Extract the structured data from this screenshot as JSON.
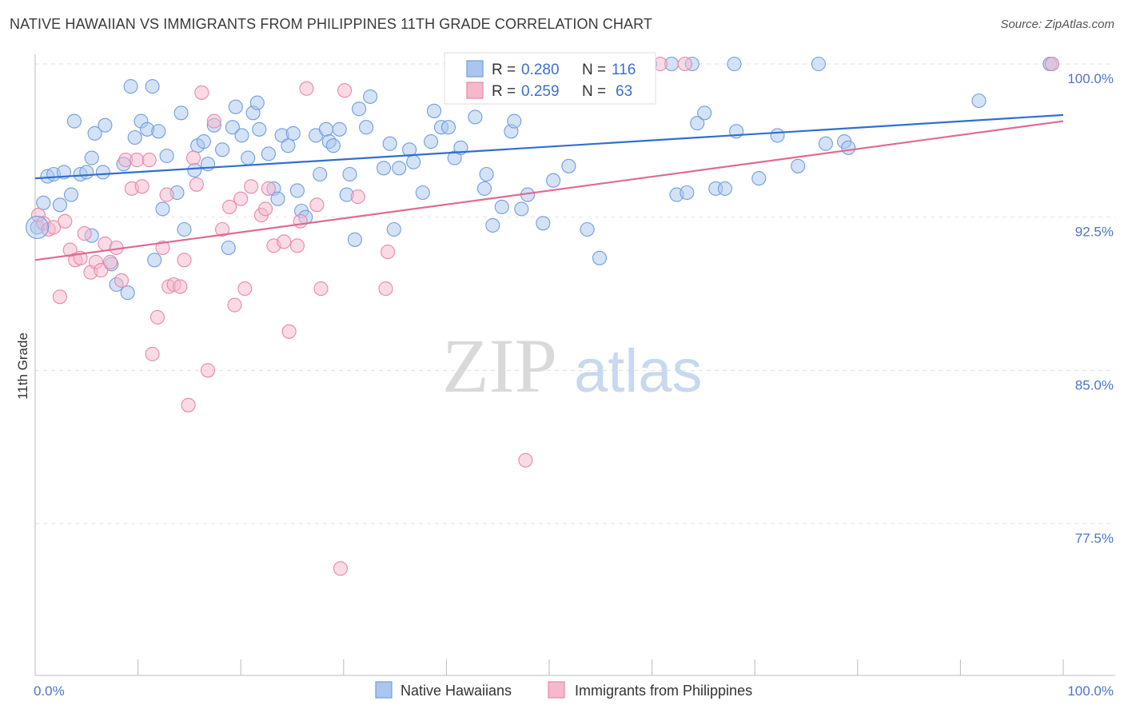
{
  "title": "NATIVE HAWAIIAN VS IMMIGRANTS FROM PHILIPPINES 11TH GRADE CORRELATION CHART",
  "source": "Source: ZipAtlas.com",
  "watermark": {
    "zip": "ZIP",
    "atlas": "atlas"
  },
  "legend": {
    "r_label": "R =",
    "n_label": "N =",
    "entries": [
      {
        "r": "0.280",
        "n": "116",
        "fill": "#aac6ee",
        "stroke": "#6f9ee0"
      },
      {
        "r": "0.259",
        "n": "63",
        "fill": "#f6b8cb",
        "stroke": "#e888a8"
      }
    ]
  },
  "bottom_legend": [
    "Native Hawaiians",
    "Immigrants from Philippines"
  ],
  "chart_data": {
    "type": "scatter",
    "xlabel": "",
    "ylabel": "11th Grade",
    "xlim": [
      0,
      100
    ],
    "ylim": [
      70,
      100.8
    ],
    "x_tick_labels": [
      "0.0%",
      "100.0%"
    ],
    "y_ticks": [
      77.5,
      85.0,
      92.5,
      100.0
    ],
    "y_tick_labels": [
      "77.5%",
      "85.0%",
      "92.5%",
      "100.0%"
    ],
    "grid": true,
    "series": [
      {
        "name": "Native Hawaiians",
        "color": "#6f9ee0",
        "fill": "#aac6ee",
        "trend": {
          "x": [
            0,
            100
          ],
          "y": [
            94.4,
            97.5
          ],
          "color": "#2f6fd0"
        },
        "points": [
          [
            0.2,
            92.0
          ],
          [
            0.8,
            93.2
          ],
          [
            1.2,
            94.5
          ],
          [
            1.8,
            94.6
          ],
          [
            2.4,
            93.1
          ],
          [
            2.8,
            94.7
          ],
          [
            3.5,
            93.6
          ],
          [
            3.8,
            97.2
          ],
          [
            4.4,
            94.6
          ],
          [
            5.0,
            94.7
          ],
          [
            5.5,
            95.4
          ],
          [
            5.5,
            91.6
          ],
          [
            5.8,
            96.6
          ],
          [
            6.6,
            94.7
          ],
          [
            6.8,
            97.0
          ],
          [
            7.4,
            90.2
          ],
          [
            7.9,
            89.2
          ],
          [
            8.6,
            95.1
          ],
          [
            9.0,
            88.8
          ],
          [
            9.3,
            98.9
          ],
          [
            9.7,
            96.4
          ],
          [
            10.3,
            97.2
          ],
          [
            10.9,
            96.8
          ],
          [
            11.4,
            98.9
          ],
          [
            11.6,
            90.4
          ],
          [
            12.0,
            96.7
          ],
          [
            12.4,
            92.9
          ],
          [
            12.8,
            95.5
          ],
          [
            13.8,
            93.7
          ],
          [
            14.2,
            97.6
          ],
          [
            14.5,
            91.9
          ],
          [
            15.5,
            94.8
          ],
          [
            15.8,
            96.0
          ],
          [
            16.4,
            96.2
          ],
          [
            16.8,
            95.1
          ],
          [
            17.4,
            97.0
          ],
          [
            18.2,
            95.8
          ],
          [
            18.8,
            91.0
          ],
          [
            19.2,
            96.9
          ],
          [
            19.5,
            97.9
          ],
          [
            20.1,
            96.5
          ],
          [
            20.7,
            95.4
          ],
          [
            21.2,
            97.6
          ],
          [
            21.6,
            98.1
          ],
          [
            21.8,
            96.8
          ],
          [
            22.7,
            95.6
          ],
          [
            23.2,
            93.9
          ],
          [
            23.6,
            93.4
          ],
          [
            24.0,
            96.5
          ],
          [
            24.6,
            96.0
          ],
          [
            25.1,
            96.6
          ],
          [
            25.5,
            93.8
          ],
          [
            25.9,
            92.8
          ],
          [
            26.3,
            92.5
          ],
          [
            27.3,
            96.5
          ],
          [
            27.7,
            94.6
          ],
          [
            28.3,
            96.8
          ],
          [
            28.6,
            96.2
          ],
          [
            29.0,
            96.0
          ],
          [
            29.6,
            96.8
          ],
          [
            30.3,
            93.6
          ],
          [
            30.6,
            94.6
          ],
          [
            31.1,
            91.4
          ],
          [
            31.5,
            97.8
          ],
          [
            32.2,
            96.9
          ],
          [
            32.6,
            98.4
          ],
          [
            33.9,
            94.9
          ],
          [
            34.5,
            96.1
          ],
          [
            34.9,
            91.9
          ],
          [
            35.4,
            94.9
          ],
          [
            36.4,
            95.8
          ],
          [
            36.8,
            95.2
          ],
          [
            37.7,
            93.7
          ],
          [
            38.5,
            96.2
          ],
          [
            38.8,
            97.7
          ],
          [
            39.5,
            96.9
          ],
          [
            40.2,
            96.9
          ],
          [
            40.8,
            95.4
          ],
          [
            41.4,
            95.9
          ],
          [
            42.5,
            100.0
          ],
          [
            42.8,
            97.4
          ],
          [
            43.7,
            93.9
          ],
          [
            43.9,
            94.6
          ],
          [
            44.5,
            92.1
          ],
          [
            45.1,
            100.0
          ],
          [
            45.4,
            93.0
          ],
          [
            46.3,
            96.7
          ],
          [
            46.6,
            97.2
          ],
          [
            47.3,
            92.9
          ],
          [
            47.9,
            93.6
          ],
          [
            49.4,
            92.2
          ],
          [
            50.4,
            94.3
          ],
          [
            51.9,
            95.0
          ],
          [
            53.7,
            91.9
          ],
          [
            54.9,
            90.5
          ],
          [
            59.8,
            100.0
          ],
          [
            61.9,
            100.0
          ],
          [
            62.4,
            93.6
          ],
          [
            63.4,
            93.7
          ],
          [
            63.9,
            100.0
          ],
          [
            64.4,
            97.1
          ],
          [
            65.1,
            97.6
          ],
          [
            66.2,
            93.9
          ],
          [
            67.1,
            93.9
          ],
          [
            68.0,
            100.0
          ],
          [
            68.2,
            96.7
          ],
          [
            70.4,
            94.4
          ],
          [
            72.2,
            96.5
          ],
          [
            74.2,
            95.0
          ],
          [
            76.2,
            100.0
          ],
          [
            76.9,
            96.1
          ],
          [
            78.7,
            96.2
          ],
          [
            79.1,
            95.9
          ],
          [
            91.8,
            98.2
          ],
          [
            98.7,
            100.0
          ],
          [
            98.9,
            100.0
          ]
        ]
      },
      {
        "name": "Immigrants from Philippines",
        "color": "#e888a8",
        "fill": "#f6b8cb",
        "trend": {
          "x": [
            0,
            100
          ],
          "y": [
            90.4,
            97.2
          ],
          "color": "#e06a93"
        },
        "points": [
          [
            0.3,
            92.6
          ],
          [
            0.8,
            92.2
          ],
          [
            1.3,
            91.9
          ],
          [
            1.8,
            92.0
          ],
          [
            2.4,
            88.6
          ],
          [
            2.9,
            92.3
          ],
          [
            3.4,
            90.9
          ],
          [
            3.9,
            90.4
          ],
          [
            4.4,
            90.5
          ],
          [
            4.8,
            91.7
          ],
          [
            5.4,
            89.8
          ],
          [
            5.9,
            90.3
          ],
          [
            6.4,
            89.9
          ],
          [
            6.8,
            91.2
          ],
          [
            7.3,
            90.3
          ],
          [
            7.9,
            91.0
          ],
          [
            8.4,
            89.4
          ],
          [
            8.8,
            95.3
          ],
          [
            9.4,
            93.9
          ],
          [
            9.9,
            95.3
          ],
          [
            10.4,
            94.0
          ],
          [
            11.1,
            95.3
          ],
          [
            11.4,
            85.8
          ],
          [
            11.9,
            87.6
          ],
          [
            12.4,
            91.0
          ],
          [
            12.8,
            93.6
          ],
          [
            13.0,
            89.1
          ],
          [
            13.5,
            89.2
          ],
          [
            14.1,
            89.1
          ],
          [
            14.5,
            90.4
          ],
          [
            14.9,
            83.3
          ],
          [
            15.4,
            95.4
          ],
          [
            15.7,
            94.1
          ],
          [
            16.2,
            98.6
          ],
          [
            16.8,
            85.0
          ],
          [
            17.4,
            97.2
          ],
          [
            18.2,
            91.9
          ],
          [
            18.9,
            93.0
          ],
          [
            19.4,
            88.2
          ],
          [
            20.0,
            93.4
          ],
          [
            20.4,
            89.0
          ],
          [
            21.0,
            94.0
          ],
          [
            22.0,
            92.6
          ],
          [
            22.4,
            92.9
          ],
          [
            22.7,
            93.9
          ],
          [
            23.2,
            91.1
          ],
          [
            24.2,
            91.3
          ],
          [
            24.7,
            86.9
          ],
          [
            25.5,
            91.1
          ],
          [
            25.8,
            92.3
          ],
          [
            26.4,
            98.8
          ],
          [
            27.4,
            93.1
          ],
          [
            27.8,
            89.0
          ],
          [
            29.7,
            75.3
          ],
          [
            30.1,
            98.7
          ],
          [
            31.4,
            93.5
          ],
          [
            34.1,
            89.0
          ],
          [
            34.3,
            90.8
          ],
          [
            42.7,
            100.0
          ],
          [
            47.7,
            80.6
          ],
          [
            60.8,
            100.0
          ],
          [
            63.2,
            100.0
          ],
          [
            98.9,
            100.0
          ]
        ]
      }
    ]
  }
}
